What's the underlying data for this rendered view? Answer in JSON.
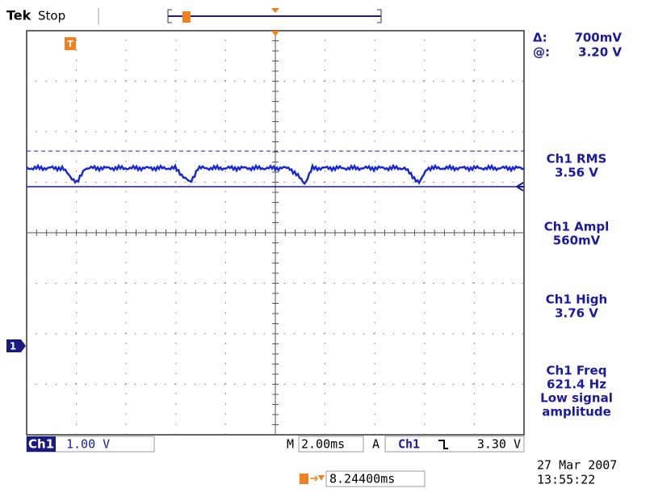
{
  "header": {
    "brand": "Tek",
    "status": "Stop"
  },
  "readouts": {
    "delta_label": "Δ:",
    "delta": "700mV",
    "at_label": "@:",
    "at": "3.20 V"
  },
  "measurements": [
    {
      "label": "Ch1 RMS",
      "value": "3.56 V"
    },
    {
      "label": "Ch1 Ampl",
      "value": "560mV"
    },
    {
      "label": "Ch1 High",
      "value": "3.76 V"
    },
    {
      "label": "Ch1 Freq",
      "value": "621.4 Hz",
      "note": [
        "Low signal",
        "amplitude"
      ]
    }
  ],
  "markers": {
    "trigger": "T",
    "channel": "1"
  },
  "footer": {
    "channel": "Ch1",
    "volts_per_div": "1.00 V",
    "timebase_label": "M",
    "timebase": "2.00ms",
    "trigger_label": "A",
    "trigger_source": "Ch1",
    "trigger_level": "3.30 V",
    "trigger_position": "8.24400ms",
    "date": "27 Mar 2007",
    "time": "13:55:22"
  }
}
